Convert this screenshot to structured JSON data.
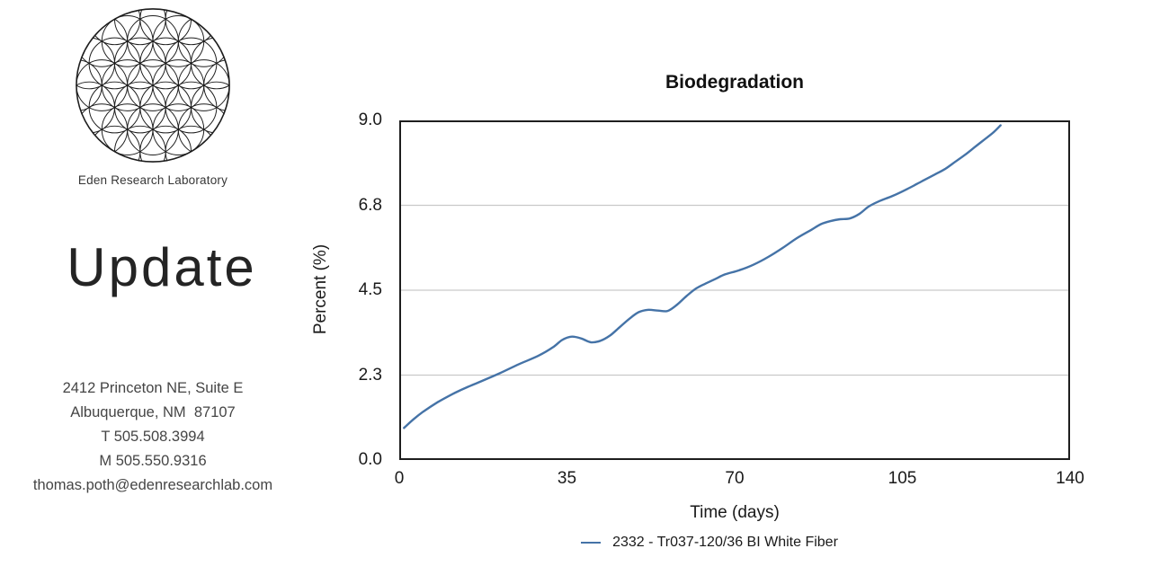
{
  "branding": {
    "logo_icon": "flower-of-life-logo",
    "org_name": "Eden Research Laboratory",
    "headline": "Update",
    "address_lines": [
      "2412 Princeton NE, Suite E",
      "Albuquerque, NM  87107",
      "T 505.508.3994",
      "M 505.550.9316",
      "thomas.poth@edenresearchlab.com"
    ]
  },
  "chart_data": {
    "type": "line",
    "title": "Biodegradation",
    "xlabel": "Time (days)",
    "ylabel": "Percent (%)",
    "xlim": [
      0,
      140
    ],
    "ylim": [
      0,
      9.0
    ],
    "x_ticks": [
      0,
      35,
      70,
      105,
      140
    ],
    "y_tick_labels": [
      "0.0",
      "2.3",
      "4.5",
      "6.8",
      "9.0"
    ],
    "y_tick_values": [
      0,
      2.25,
      4.5,
      6.75,
      9.0
    ],
    "grid": "horizontal-only",
    "grid_color": "#c9c9c9",
    "frame_color": "#1e1e1e",
    "legend_position": "bottom-center",
    "series": [
      {
        "name": "2332 - Tr037-120/36 BI White Fiber",
        "color": "#4573a7",
        "x": [
          1,
          3,
          5,
          8,
          11,
          14,
          17,
          21,
          25,
          29,
          32,
          34,
          36,
          38,
          40,
          42,
          44,
          46,
          48,
          50,
          52,
          54,
          56,
          58,
          60,
          62,
          64,
          66,
          68,
          71,
          74,
          77,
          80,
          83,
          86,
          88,
          90,
          92,
          94,
          96,
          98,
          100,
          103,
          106,
          109,
          112,
          114,
          116,
          118,
          120,
          122,
          124,
          125.5
        ],
        "y": [
          0.85,
          1.08,
          1.28,
          1.53,
          1.74,
          1.92,
          2.08,
          2.3,
          2.54,
          2.76,
          2.98,
          3.18,
          3.27,
          3.22,
          3.12,
          3.16,
          3.3,
          3.52,
          3.74,
          3.92,
          3.98,
          3.96,
          3.95,
          4.12,
          4.35,
          4.55,
          4.68,
          4.8,
          4.92,
          5.03,
          5.18,
          5.38,
          5.62,
          5.88,
          6.1,
          6.25,
          6.33,
          6.38,
          6.4,
          6.52,
          6.72,
          6.85,
          7.0,
          7.18,
          7.38,
          7.58,
          7.72,
          7.9,
          8.08,
          8.28,
          8.48,
          8.68,
          8.87
        ]
      }
    ]
  }
}
